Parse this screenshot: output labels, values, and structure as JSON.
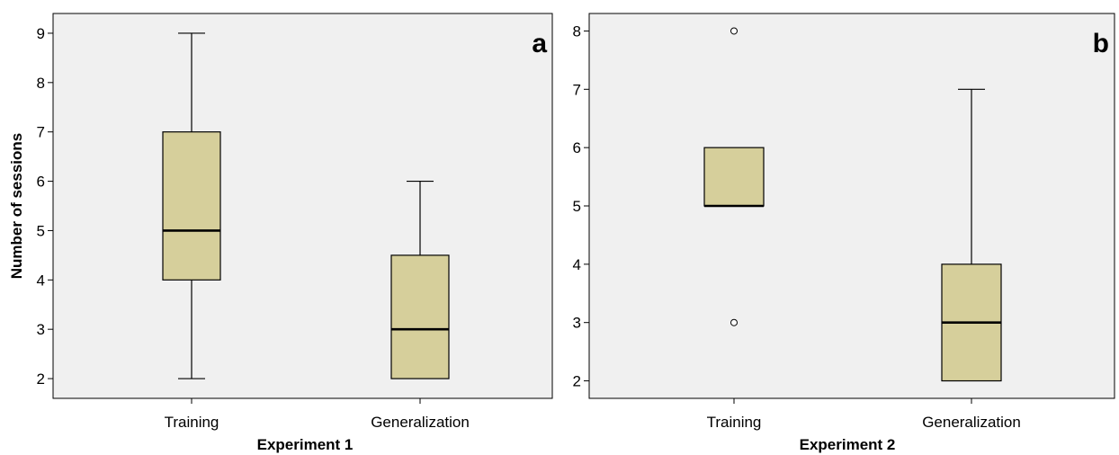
{
  "chart_data": [
    {
      "type": "box",
      "panel_letter": "a",
      "xlabel": "Experiment 1",
      "ylabel": "Number of sessions",
      "categories": [
        "Training",
        "Generalization"
      ],
      "ylim": [
        1.6,
        9.4
      ],
      "yticks": [
        2,
        3,
        4,
        5,
        6,
        7,
        8,
        9
      ],
      "boxes": [
        {
          "category": "Training",
          "min": 2,
          "q1": 4,
          "median": 5,
          "q3": 7,
          "max": 9,
          "outliers": []
        },
        {
          "category": "Generalization",
          "min": 2,
          "q1": 2,
          "median": 3,
          "q3": 4.5,
          "max": 6,
          "outliers": []
        }
      ],
      "colors": {
        "box_fill": "#d6cf9b",
        "plot_bg": "#f0f0f0"
      },
      "grid": false
    },
    {
      "type": "box",
      "panel_letter": "b",
      "xlabel": "Experiment 2",
      "ylabel": "",
      "categories": [
        "Training",
        "Generalization"
      ],
      "ylim": [
        1.7,
        8.3
      ],
      "yticks": [
        2,
        3,
        4,
        5,
        6,
        7,
        8
      ],
      "boxes": [
        {
          "category": "Training",
          "min": 5,
          "q1": 5,
          "median": 5,
          "q3": 6,
          "max": 6,
          "outliers": [
            3,
            8
          ]
        },
        {
          "category": "Generalization",
          "min": 2,
          "q1": 2,
          "median": 3,
          "q3": 4,
          "max": 7,
          "outliers": []
        }
      ],
      "colors": {
        "box_fill": "#d6cf9b",
        "plot_bg": "#f0f0f0"
      },
      "grid": false
    }
  ]
}
